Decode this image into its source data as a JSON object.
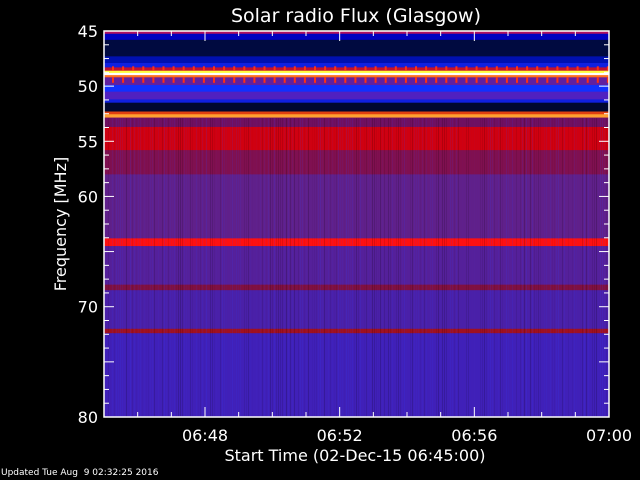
{
  "chart_data": {
    "type": "heatmap",
    "title": "Solar radio Flux (Glasgow)",
    "xlabel": "Start Time (02-Dec-15 06:45:00)",
    "ylabel": "Frequency [MHz]",
    "xlim": [
      "06:45",
      "07:00"
    ],
    "ylim": [
      45,
      80
    ],
    "y_inverted": true,
    "x_ticks": [
      "06:48",
      "06:52",
      "06:56",
      "07:00"
    ],
    "y_ticks": [
      45,
      50,
      55,
      60,
      70,
      80
    ],
    "grid": false,
    "colormap": "blue-purple-red-yellow-white",
    "bands": [
      {
        "f0": 45.0,
        "f1": 45.25,
        "color": "#b01060"
      },
      {
        "f0": 45.25,
        "f1": 45.8,
        "color": "#0000c0"
      },
      {
        "f0": 45.8,
        "f1": 47.3,
        "color": "#000a40"
      },
      {
        "f0": 47.3,
        "f1": 47.9,
        "color": "#0010b0"
      },
      {
        "f0": 47.9,
        "f1": 48.3,
        "color": "#1020e0"
      },
      {
        "f0": 48.3,
        "f1": 48.6,
        "color": "#c01030"
      },
      {
        "f0": 48.6,
        "f1": 48.8,
        "color": "#ffff40"
      },
      {
        "f0": 48.8,
        "f1": 49.0,
        "color": "#ffffff"
      },
      {
        "f0": 49.0,
        "f1": 49.2,
        "color": "#ff7020"
      },
      {
        "f0": 49.2,
        "f1": 49.9,
        "color": "#6020a0"
      },
      {
        "f0": 49.9,
        "f1": 50.5,
        "color": "#1030ff"
      },
      {
        "f0": 50.5,
        "f1": 51.2,
        "color": "#5020c0"
      },
      {
        "f0": 51.2,
        "f1": 51.5,
        "color": "#1020e0"
      },
      {
        "f0": 51.5,
        "f1": 52.3,
        "color": "#000830"
      },
      {
        "f0": 52.3,
        "f1": 52.55,
        "color": "#e04010"
      },
      {
        "f0": 52.55,
        "f1": 52.85,
        "color": "#ffa030"
      },
      {
        "f0": 52.85,
        "f1": 53.7,
        "color": "#701060"
      },
      {
        "f0": 53.7,
        "f1": 55.8,
        "color": "#d00010"
      },
      {
        "f0": 55.8,
        "f1": 58.0,
        "color": "#801050"
      },
      {
        "f0": 58.0,
        "f1": 63.8,
        "color": "#60208a"
      },
      {
        "f0": 63.8,
        "f1": 64.5,
        "color": "#ff1010"
      },
      {
        "f0": 64.5,
        "f1": 68.0,
        "color": "#55209a"
      },
      {
        "f0": 68.0,
        "f1": 68.5,
        "color": "#801040"
      },
      {
        "f0": 68.5,
        "f1": 72.0,
        "color": "#4a20a8"
      },
      {
        "f0": 72.0,
        "f1": 72.4,
        "color": "#a01020"
      },
      {
        "f0": 72.4,
        "f1": 80.0,
        "color": "#4020b8"
      }
    ]
  },
  "footer": {
    "updated": "Updated Tue Aug  9 02:32:25 2016"
  }
}
